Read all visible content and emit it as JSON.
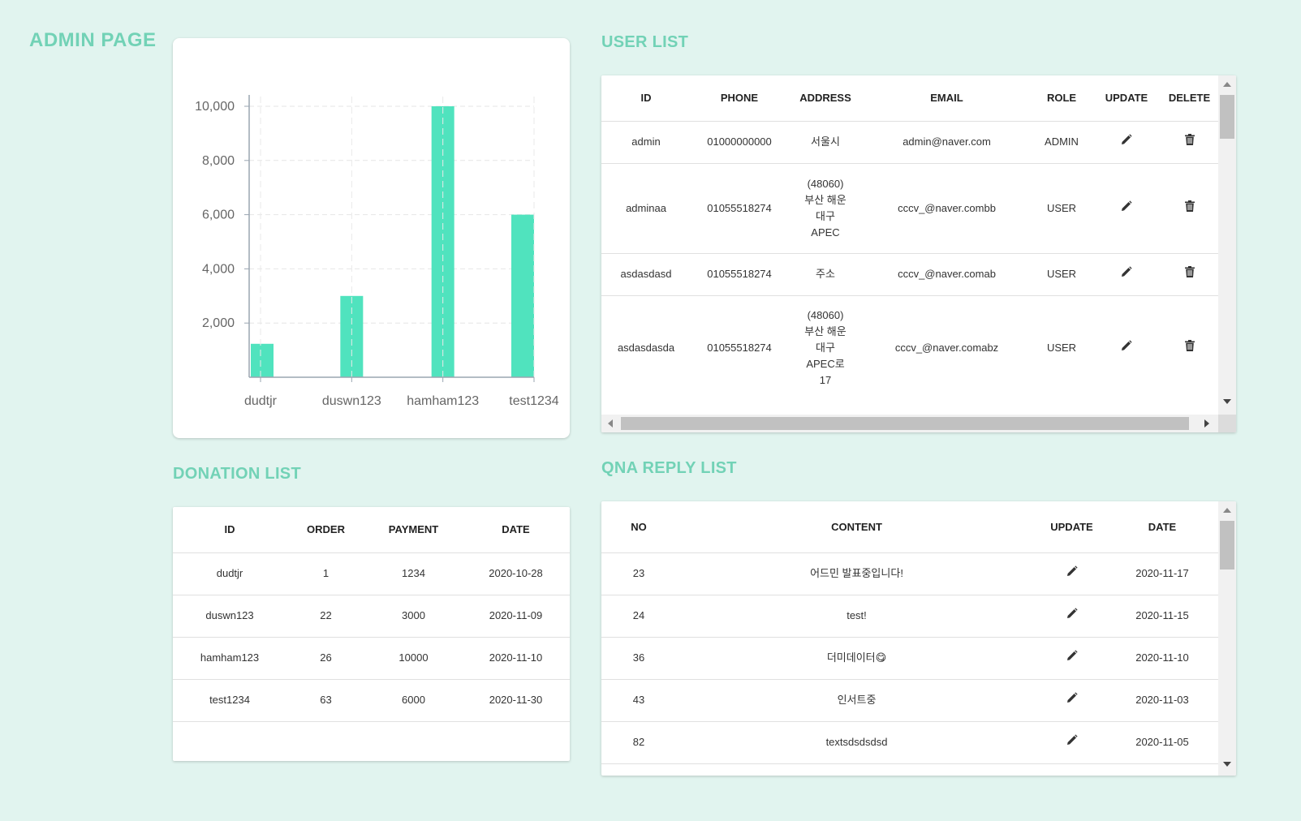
{
  "page_title": "ADMIN PAGE",
  "colors": {
    "accent": "#72d2b6",
    "bar": "#50e3be",
    "background": "#e1f4ef"
  },
  "icons": {
    "edit": "pencil-icon",
    "delete": "trash-icon"
  },
  "chart_data": {
    "type": "bar",
    "categories": [
      "dudtjr",
      "duswn123",
      "hamham123",
      "test1234"
    ],
    "values": [
      1234,
      3000,
      10000,
      6000
    ],
    "yticks": [
      "2,000",
      "4,000",
      "6,000",
      "8,000",
      "10,000"
    ],
    "ylim": [
      0,
      10000
    ],
    "grid": true,
    "title": "",
    "xlabel": "",
    "ylabel": ""
  },
  "user_list": {
    "title": "USER LIST",
    "headers": [
      "ID",
      "PHONE",
      "ADDRESS",
      "EMAIL",
      "ROLE",
      "UPDATE",
      "DELETE"
    ],
    "rows": [
      {
        "id": "admin",
        "phone": "01000000000",
        "address": [
          "서울시"
        ],
        "email": "admin@naver.com",
        "role": "ADMIN"
      },
      {
        "id": "adminaa",
        "phone": "01055518274",
        "address": [
          "(48060)",
          "부산 해운",
          "대구",
          "APEC"
        ],
        "email": "cccv_@naver.combb",
        "role": "USER"
      },
      {
        "id": "asdasdasd",
        "phone": "01055518274",
        "address": [
          "주소"
        ],
        "email": "cccv_@naver.comab",
        "role": "USER"
      },
      {
        "id": "asdasdasda",
        "phone": "01055518274",
        "address": [
          "(48060)",
          "부산 해운",
          "대구",
          "APEC로",
          "17"
        ],
        "email": "cccv_@naver.comabz",
        "role": "USER"
      }
    ]
  },
  "donation_list": {
    "title": "DONATION LIST",
    "headers": [
      "ID",
      "ORDER",
      "PAYMENT",
      "DATE"
    ],
    "rows": [
      {
        "id": "dudtjr",
        "order": "1",
        "payment": "1234",
        "date": "2020-10-28"
      },
      {
        "id": "duswn123",
        "order": "22",
        "payment": "3000",
        "date": "2020-11-09"
      },
      {
        "id": "hamham123",
        "order": "26",
        "payment": "10000",
        "date": "2020-11-10"
      },
      {
        "id": "test1234",
        "order": "63",
        "payment": "6000",
        "date": "2020-11-30"
      }
    ]
  },
  "qna_list": {
    "title": "QNA REPLY LIST",
    "headers": [
      "NO",
      "CONTENT",
      "UPDATE",
      "DATE"
    ],
    "rows": [
      {
        "no": "23",
        "content": "어드민 발표중입니다!",
        "date": "2020-11-17"
      },
      {
        "no": "24",
        "content": "test!",
        "date": "2020-11-15"
      },
      {
        "no": "36",
        "content": "더미데이터😋",
        "date": "2020-11-10"
      },
      {
        "no": "43",
        "content": "인서트중",
        "date": "2020-11-03"
      },
      {
        "no": "82",
        "content": "textsdsdsdsd",
        "date": "2020-11-05"
      }
    ]
  }
}
